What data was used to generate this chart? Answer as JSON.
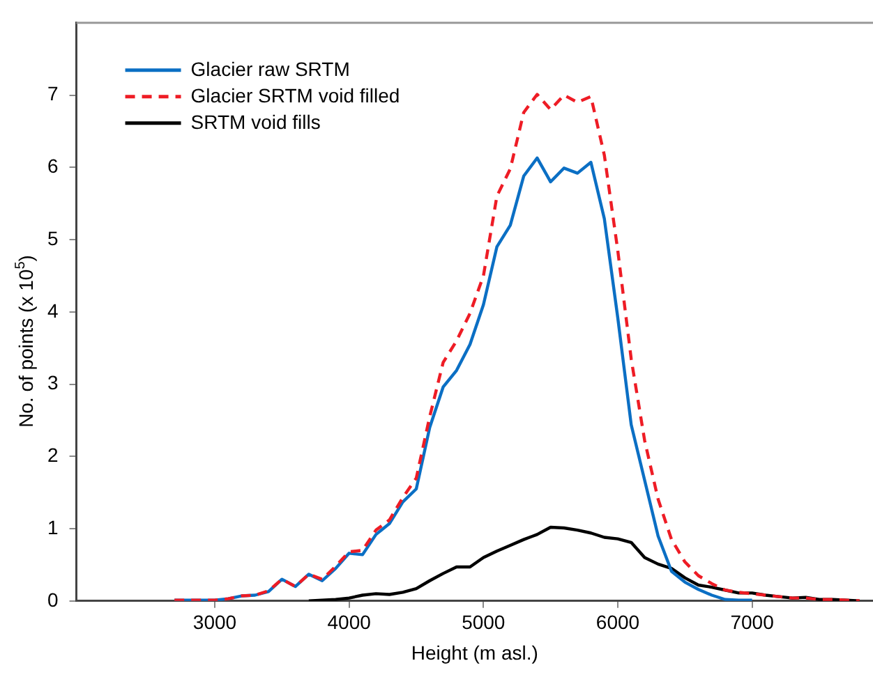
{
  "chart_data": {
    "type": "line",
    "xlabel": "Height (m asl.)",
    "ylabel": "No. of points  (x 10$^{5}$)",
    "series": [
      {
        "name": "Glacier raw SRTM",
        "color": "#0b6fc4",
        "line_style": "solid",
        "x": [
          2700,
          2800,
          2900,
          3000,
          3100,
          3200,
          3300,
          3400,
          3500,
          3600,
          3700,
          3800,
          3900,
          4000,
          4100,
          4200,
          4300,
          4400,
          4500,
          4600,
          4700,
          4800,
          4900,
          5000,
          5100,
          5200,
          5300,
          5400,
          5500,
          5600,
          5700,
          5800,
          5900,
          6000,
          6100,
          6200,
          6300,
          6400,
          6500,
          6600,
          6700,
          6800,
          6900,
          7000
        ],
        "values": [
          0.01,
          0.01,
          0.01,
          0.01,
          0.03,
          0.07,
          0.08,
          0.13,
          0.3,
          0.2,
          0.37,
          0.28,
          0.45,
          0.66,
          0.64,
          0.92,
          1.07,
          1.37,
          1.55,
          2.4,
          2.96,
          3.19,
          3.55,
          4.1,
          4.9,
          5.2,
          5.88,
          6.13,
          5.8,
          5.99,
          5.92,
          6.07,
          5.29,
          3.92,
          2.44,
          1.67,
          0.9,
          0.41,
          0.26,
          0.16,
          0.08,
          0.02,
          0.01,
          0.01
        ]
      },
      {
        "name": "Glacier SRTM void filled",
        "color": "#ee1c25",
        "line_style": "dashed",
        "x": [
          2700,
          2800,
          2900,
          3000,
          3100,
          3200,
          3300,
          3400,
          3500,
          3600,
          3700,
          3800,
          3900,
          4000,
          4100,
          4200,
          4300,
          4400,
          4500,
          4600,
          4700,
          4800,
          4900,
          5000,
          5100,
          5200,
          5300,
          5400,
          5500,
          5600,
          5700,
          5800,
          5900,
          6000,
          6100,
          6200,
          6300,
          6400,
          6500,
          6600,
          6700,
          6800,
          6900,
          7000,
          7100,
          7200,
          7300,
          7400,
          7500,
          7600,
          7700,
          7800
        ],
        "values": [
          0.01,
          0.01,
          0.01,
          0.01,
          0.03,
          0.07,
          0.08,
          0.14,
          0.3,
          0.2,
          0.37,
          0.3,
          0.48,
          0.68,
          0.7,
          0.98,
          1.12,
          1.43,
          1.7,
          2.55,
          3.3,
          3.6,
          3.98,
          4.5,
          5.6,
          5.98,
          6.76,
          7.01,
          6.8,
          7.0,
          6.9,
          6.98,
          6.17,
          4.85,
          3.35,
          2.22,
          1.41,
          0.85,
          0.54,
          0.35,
          0.24,
          0.15,
          0.12,
          0.1,
          0.08,
          0.06,
          0.04,
          0.04,
          0.02,
          0.02,
          0.01,
          0
        ]
      },
      {
        "name": "SRTM void fills",
        "color": "#000000",
        "line_style": "solid",
        "x": [
          3700,
          3800,
          3900,
          4000,
          4100,
          4200,
          4300,
          4400,
          4500,
          4600,
          4700,
          4800,
          4900,
          5000,
          5100,
          5200,
          5300,
          5400,
          5500,
          5600,
          5700,
          5800,
          5900,
          6000,
          6100,
          6200,
          6300,
          6400,
          6500,
          6600,
          6700,
          6800,
          6900,
          7000,
          7100,
          7200,
          7300,
          7400,
          7500,
          7600,
          7700,
          7800
        ],
        "values": [
          0,
          0.01,
          0.02,
          0.04,
          0.08,
          0.1,
          0.09,
          0.12,
          0.17,
          0.28,
          0.38,
          0.47,
          0.47,
          0.6,
          0.69,
          0.77,
          0.85,
          0.92,
          1.02,
          1.01,
          0.98,
          0.94,
          0.88,
          0.86,
          0.81,
          0.6,
          0.51,
          0.45,
          0.32,
          0.22,
          0.19,
          0.15,
          0.11,
          0.11,
          0.08,
          0.06,
          0.04,
          0.05,
          0.02,
          0.02,
          0.01,
          0
        ]
      }
    ],
    "xlim": [
      1970,
      7900
    ],
    "xticks": [
      3000,
      4000,
      5000,
      6000,
      7000
    ],
    "ylim": [
      0,
      8
    ],
    "yticks": [
      0,
      1,
      2,
      3,
      4,
      5,
      6,
      7
    ],
    "grid": false,
    "legend": "top left",
    "marker": "none"
  }
}
